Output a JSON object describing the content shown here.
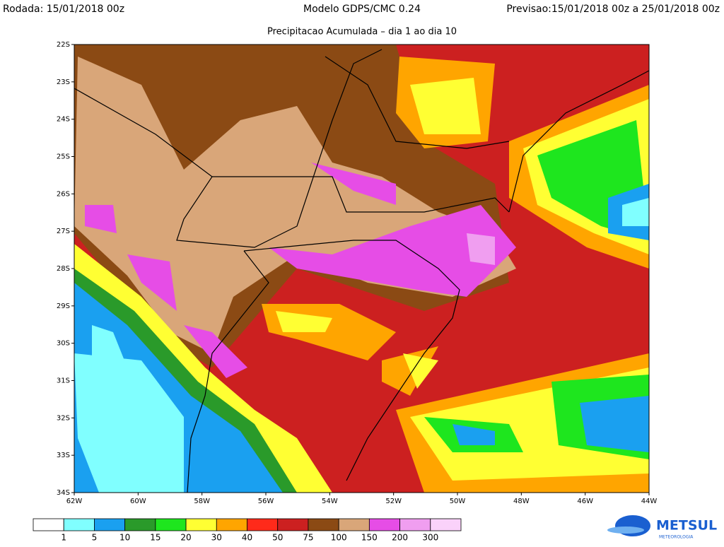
{
  "header": {
    "left": "Rodada: 15/01/2018 00z",
    "center": "Modelo GDPS/CMC 0.24",
    "right": "Previsao:15/01/2018 00z a 25/01/2018 00z",
    "subtitle": "Precipitacao Acumulada – dia 1 ao dia 10"
  },
  "map": {
    "lat_labels": [
      "22S",
      "23S",
      "24S",
      "25S",
      "26S",
      "27S",
      "28S",
      "29S",
      "30S",
      "31S",
      "32S",
      "33S",
      "34S"
    ],
    "lon_labels": [
      "62W",
      "60W",
      "58W",
      "56W",
      "54W",
      "52W",
      "50W",
      "48W",
      "46W",
      "44W"
    ]
  },
  "legend": {
    "colors": [
      "#ffffff",
      "#80ffff",
      "#1aa0f0",
      "#2a9a2a",
      "#1ee61e",
      "#ffff33",
      "#ffa500",
      "#ff2a1a",
      "#cc2020",
      "#8b4a14",
      "#d9a679",
      "#e64de6",
      "#f09ef0",
      "#fad2fa"
    ],
    "labels": [
      "1",
      "5",
      "10",
      "15",
      "20",
      "30",
      "40",
      "50",
      "75",
      "100",
      "150",
      "200",
      "300"
    ]
  },
  "logo": {
    "name": "METSUL",
    "tagline": "METEOROLOGIA"
  }
}
